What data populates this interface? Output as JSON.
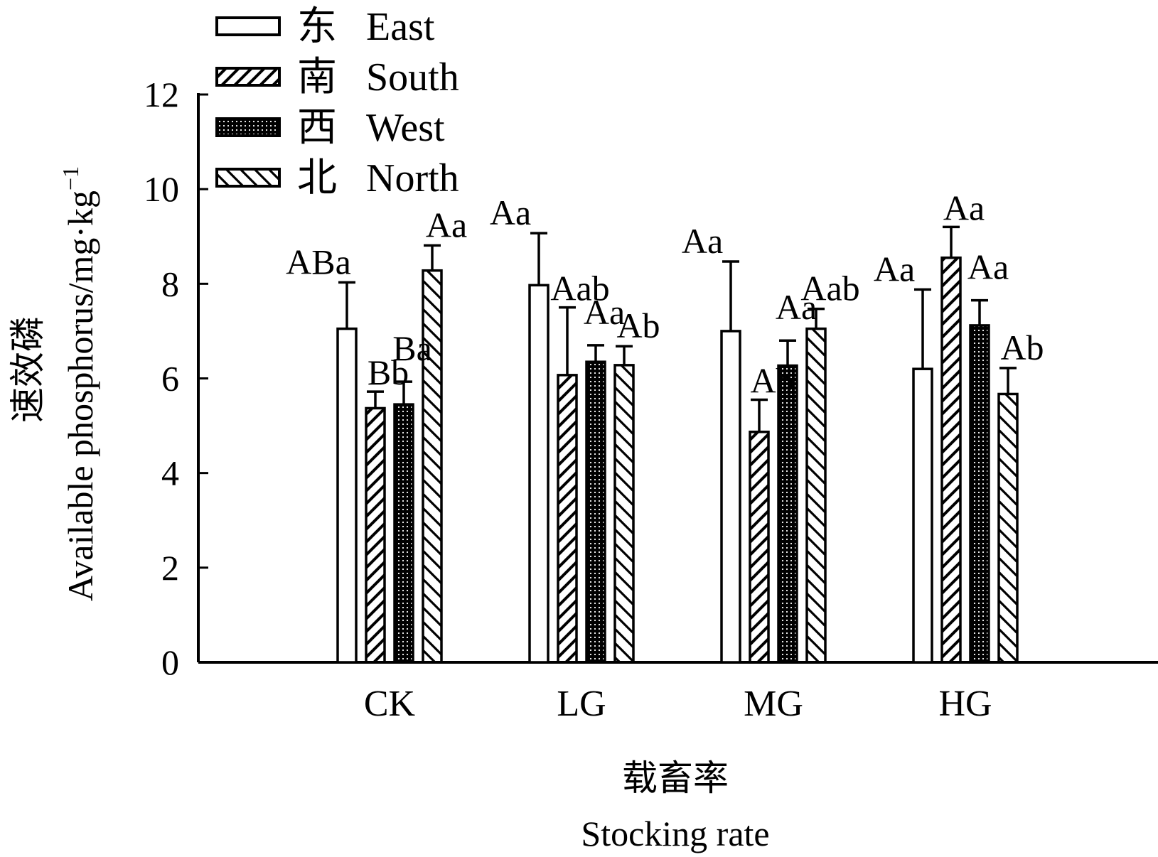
{
  "chart_data": {
    "type": "bar",
    "categories": [
      "CK",
      "LG",
      "MG",
      "HG"
    ],
    "series": [
      {
        "name_cn": "东",
        "name": "East",
        "pattern": "open",
        "values": [
          7.05,
          7.97,
          7.0,
          6.2
        ],
        "errors": [
          0.98,
          1.1,
          1.47,
          1.68
        ],
        "labels": [
          "ABa",
          "Aa",
          "Aa",
          "Aa"
        ]
      },
      {
        "name_cn": "南",
        "name": "South",
        "pattern": "hatch-right",
        "values": [
          5.37,
          6.07,
          4.87,
          8.55
        ],
        "errors": [
          0.35,
          1.43,
          0.68,
          0.65
        ],
        "labels": [
          "Bb",
          "Aab",
          "Ab",
          "Aa"
        ]
      },
      {
        "name_cn": "西",
        "name": "West",
        "pattern": "dotted",
        "values": [
          5.45,
          6.35,
          6.27,
          7.12
        ],
        "errors": [
          0.48,
          0.35,
          0.53,
          0.53
        ],
        "labels": [
          "Ba",
          "Aa",
          "Aa",
          "Aa"
        ]
      },
      {
        "name_cn": "北",
        "name": "North",
        "pattern": "hatch-left",
        "values": [
          8.28,
          6.28,
          7.05,
          5.67
        ],
        "errors": [
          0.53,
          0.4,
          0.42,
          0.55
        ],
        "labels": [
          "Aa",
          "Ab",
          "Aab",
          "Ab"
        ]
      }
    ],
    "ylim": [
      0,
      12
    ],
    "yticks": [
      0,
      2,
      4,
      6,
      8,
      10,
      12
    ],
    "ylabel_cn": "速效磷",
    "ylabel": "Available phosphorus/mg·kg",
    "ylabel_sup": "−1",
    "xlabel_cn": "载畜率",
    "xlabel": "Stocking rate",
    "legend_position": "top-left",
    "grid": false
  }
}
